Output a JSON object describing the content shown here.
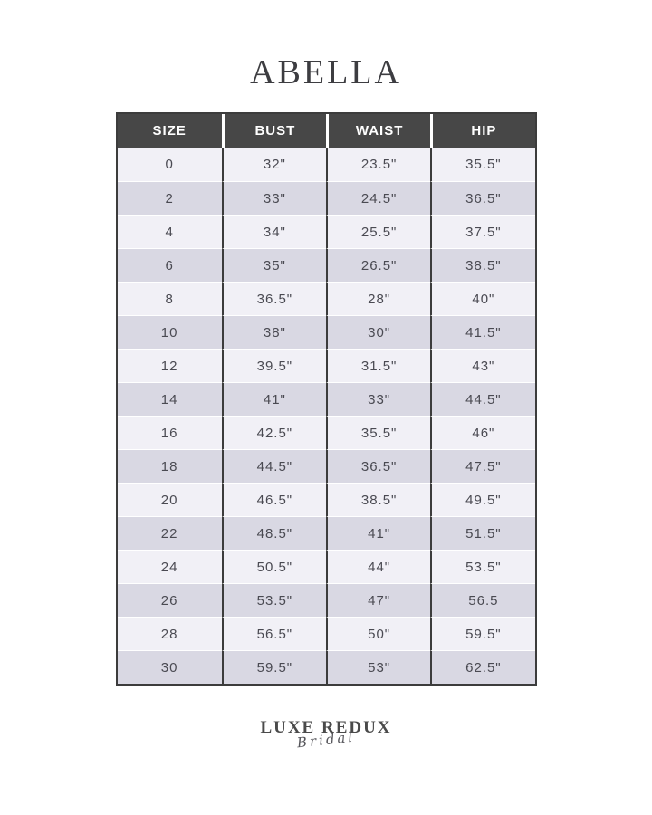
{
  "page": {
    "title": "ABELLA"
  },
  "table": {
    "headers": [
      "SIZE",
      "BUST",
      "WAIST",
      "HIP"
    ],
    "rows": [
      [
        "0",
        "32\"",
        "23.5\"",
        "35.5\""
      ],
      [
        "2",
        "33\"",
        "24.5\"",
        "36.5\""
      ],
      [
        "4",
        "34\"",
        "25.5\"",
        "37.5\""
      ],
      [
        "6",
        "35\"",
        "26.5\"",
        "38.5\""
      ],
      [
        "8",
        "36.5\"",
        "28\"",
        "40\""
      ],
      [
        "10",
        "38\"",
        "30\"",
        "41.5\""
      ],
      [
        "12",
        "39.5\"",
        "31.5\"",
        "43\""
      ],
      [
        "14",
        "41\"",
        "33\"",
        "44.5\""
      ],
      [
        "16",
        "42.5\"",
        "35.5\"",
        "46\""
      ],
      [
        "18",
        "44.5\"",
        "36.5\"",
        "47.5\""
      ],
      [
        "20",
        "46.5\"",
        "38.5\"",
        "49.5\""
      ],
      [
        "22",
        "48.5\"",
        "41\"",
        "51.5\""
      ],
      [
        "24",
        "50.5\"",
        "44\"",
        "53.5\""
      ],
      [
        "26",
        "53.5\"",
        "47\"",
        "56.5"
      ],
      [
        "28",
        "56.5\"",
        "50\"",
        "59.5\""
      ],
      [
        "30",
        "59.5\"",
        "53\"",
        "62.5\""
      ]
    ]
  },
  "footer": {
    "brand_line1": "LUXE REDUX",
    "brand_line2": "Bridal"
  },
  "colors": {
    "header_bg": "#474747",
    "header_text": "#ffffff",
    "row_light": "#f1f0f6",
    "row_dark": "#d9d8e3",
    "table_border": "#3c3c3c",
    "cell_text": "#4a4a52",
    "title_text": "#3d3d41",
    "page_bg": "#ffffff"
  }
}
